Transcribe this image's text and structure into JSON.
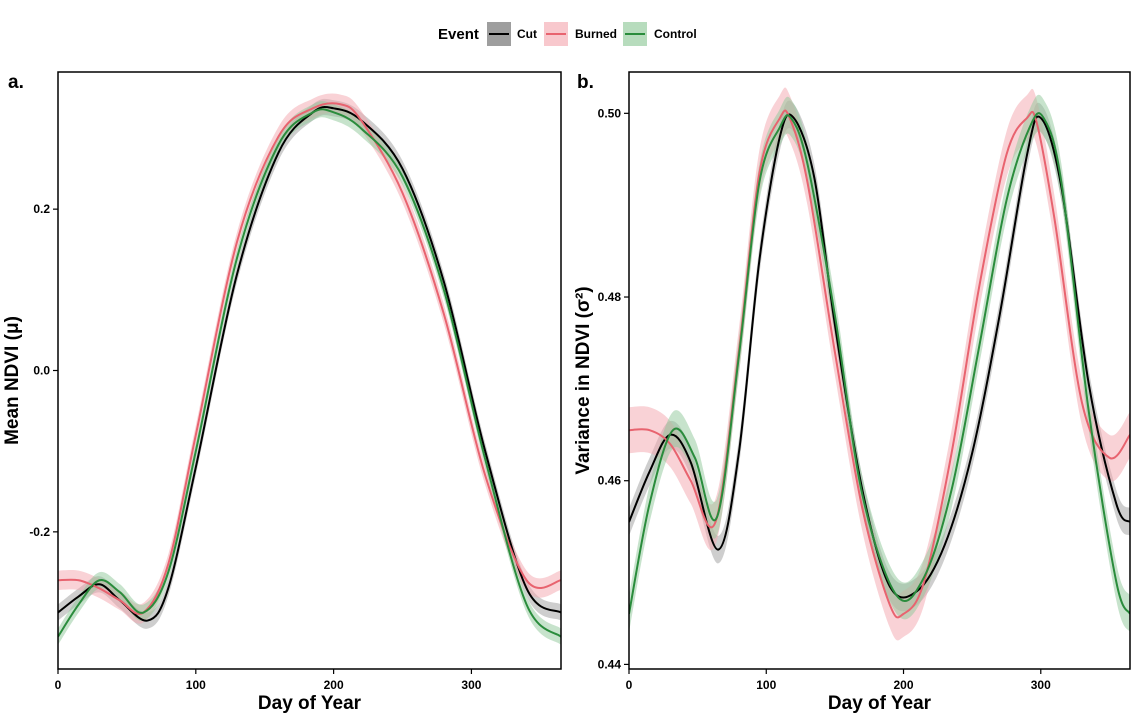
{
  "legend": {
    "title": "Event",
    "entries": [
      {
        "name": "Cut",
        "color": "#000000",
        "band": "#9e9e9e"
      },
      {
        "name": "Burned",
        "color": "#e8636f",
        "band": "#f4a6ae"
      },
      {
        "name": "Control",
        "color": "#2a8c3c",
        "band": "#8fc79a"
      }
    ]
  },
  "chart_data": [
    {
      "panel": "a.",
      "type": "line",
      "xlabel": "Day of Year",
      "ylabel": "Mean NDVI (μ)",
      "xlim": [
        0,
        365
      ],
      "ylim": [
        -0.37,
        0.37
      ],
      "xticks": [
        0,
        100,
        200,
        300
      ],
      "yticks": [
        -0.2,
        0.0,
        0.2
      ],
      "ytick_labels": [
        "-0.2",
        "0.0",
        "0.2"
      ],
      "grid": false,
      "legend_position": "top",
      "series": [
        {
          "name": "Cut",
          "x": [
            0,
            15,
            30,
            45,
            65,
            80,
            100,
            130,
            160,
            185,
            200,
            220,
            250,
            280,
            310,
            340,
            365
          ],
          "y": [
            -0.3,
            -0.28,
            -0.265,
            -0.285,
            -0.31,
            -0.27,
            -0.12,
            0.12,
            0.27,
            0.32,
            0.325,
            0.31,
            0.25,
            0.11,
            -0.1,
            -0.27,
            -0.3
          ],
          "band": 0.01
        },
        {
          "name": "Burned",
          "x": [
            0,
            15,
            30,
            45,
            62,
            80,
            100,
            130,
            160,
            185,
            205,
            220,
            250,
            280,
            310,
            340,
            365
          ],
          "y": [
            -0.26,
            -0.26,
            -0.27,
            -0.285,
            -0.3,
            -0.24,
            -0.08,
            0.16,
            0.29,
            0.325,
            0.33,
            0.31,
            0.22,
            0.07,
            -0.13,
            -0.26,
            -0.26
          ],
          "band": 0.012
        },
        {
          "name": "Control",
          "x": [
            0,
            15,
            30,
            45,
            62,
            80,
            100,
            130,
            160,
            185,
            200,
            220,
            250,
            280,
            310,
            340,
            365
          ],
          "y": [
            -0.33,
            -0.29,
            -0.26,
            -0.275,
            -0.3,
            -0.25,
            -0.1,
            0.14,
            0.28,
            0.32,
            0.32,
            0.3,
            0.24,
            0.1,
            -0.11,
            -0.29,
            -0.33
          ],
          "band": 0.01
        }
      ]
    },
    {
      "panel": "b.",
      "type": "line",
      "xlabel": "Day of Year",
      "ylabel": "Variance in NDVI (σ²)",
      "xlim": [
        0,
        365
      ],
      "ylim": [
        0.4395,
        0.5045
      ],
      "xticks": [
        0,
        100,
        200,
        300
      ],
      "yticks": [
        0.44,
        0.46,
        0.48,
        0.5
      ],
      "ytick_labels": [
        "0.44",
        "0.46",
        "0.48",
        "0.50"
      ],
      "grid": false,
      "legend_position": "top",
      "series": [
        {
          "name": "Cut",
          "x": [
            0,
            15,
            30,
            45,
            65,
            80,
            95,
            110,
            120,
            135,
            150,
            170,
            190,
            210,
            230,
            250,
            270,
            290,
            300,
            315,
            335,
            355,
            365
          ],
          "y": [
            0.4555,
            0.461,
            0.465,
            0.462,
            0.4525,
            0.463,
            0.484,
            0.4975,
            0.4995,
            0.493,
            0.477,
            0.459,
            0.4485,
            0.448,
            0.453,
            0.463,
            0.478,
            0.4955,
            0.4995,
            0.492,
            0.4705,
            0.4575,
            0.4555
          ],
          "band": 0.0015
        },
        {
          "name": "Burned",
          "x": [
            0,
            15,
            30,
            45,
            63,
            80,
            95,
            110,
            117,
            130,
            150,
            170,
            190,
            200,
            215,
            235,
            255,
            275,
            290,
            297,
            310,
            330,
            350,
            365
          ],
          "y": [
            0.4655,
            0.4655,
            0.464,
            0.46,
            0.4555,
            0.474,
            0.4935,
            0.4995,
            0.4995,
            0.4925,
            0.474,
            0.457,
            0.4465,
            0.4455,
            0.449,
            0.463,
            0.481,
            0.4955,
            0.4995,
            0.499,
            0.4885,
            0.4685,
            0.4625,
            0.465
          ],
          "band": 0.0025
        },
        {
          "name": "Control",
          "x": [
            0,
            15,
            32,
            48,
            64,
            80,
            95,
            110,
            118,
            130,
            150,
            170,
            195,
            215,
            235,
            255,
            275,
            292,
            302,
            315,
            335,
            355,
            365
          ],
          "y": [
            0.4455,
            0.4575,
            0.4655,
            0.4625,
            0.456,
            0.4735,
            0.4925,
            0.4985,
            0.4995,
            0.4945,
            0.478,
            0.4585,
            0.4475,
            0.4495,
            0.459,
            0.4745,
            0.4905,
            0.4985,
            0.4995,
            0.4925,
            0.4675,
            0.449,
            0.4455
          ],
          "band": 0.002
        }
      ]
    }
  ]
}
